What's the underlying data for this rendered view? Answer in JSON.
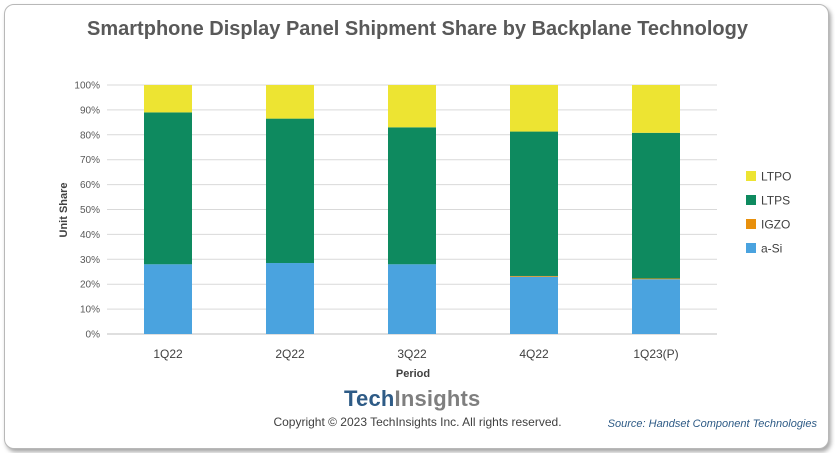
{
  "chart_data": {
    "type": "bar",
    "stacked": true,
    "title": "Smartphone Display Panel Shipment Share by Backplane Technology",
    "xlabel": "Period",
    "ylabel": "Unit Share",
    "ylim": [
      0,
      100
    ],
    "yticks": [
      "0%",
      "10%",
      "20%",
      "30%",
      "40%",
      "50%",
      "60%",
      "70%",
      "80%",
      "90%",
      "100%"
    ],
    "categories": [
      "1Q22",
      "2Q22",
      "3Q22",
      "4Q22",
      "1Q23(P)"
    ],
    "series": [
      {
        "name": "a-Si",
        "color": "#4aa3df",
        "values": [
          28,
          28.5,
          28,
          23,
          22
        ]
      },
      {
        "name": "IGZO",
        "color": "#e8900c",
        "values": [
          0,
          0,
          0,
          0.3,
          0.3
        ]
      },
      {
        "name": "LTPS",
        "color": "#0e8a5f",
        "values": [
          61,
          58,
          55,
          58,
          58.5
        ]
      },
      {
        "name": "LTPO",
        "color": "#ede432",
        "values": [
          11,
          13.5,
          17,
          18.7,
          19.2
        ]
      }
    ],
    "legend": {
      "position": "right",
      "order": [
        "LTPO",
        "LTPS",
        "IGZO",
        "a-Si"
      ]
    },
    "grid": true
  },
  "footer": {
    "brand_part1": "Tech",
    "brand_part2": "Insights",
    "copyright": "Copyright © 2023 TechInsights Inc.  All rights reserved.",
    "source": "Source: Handset Component Technologies"
  }
}
